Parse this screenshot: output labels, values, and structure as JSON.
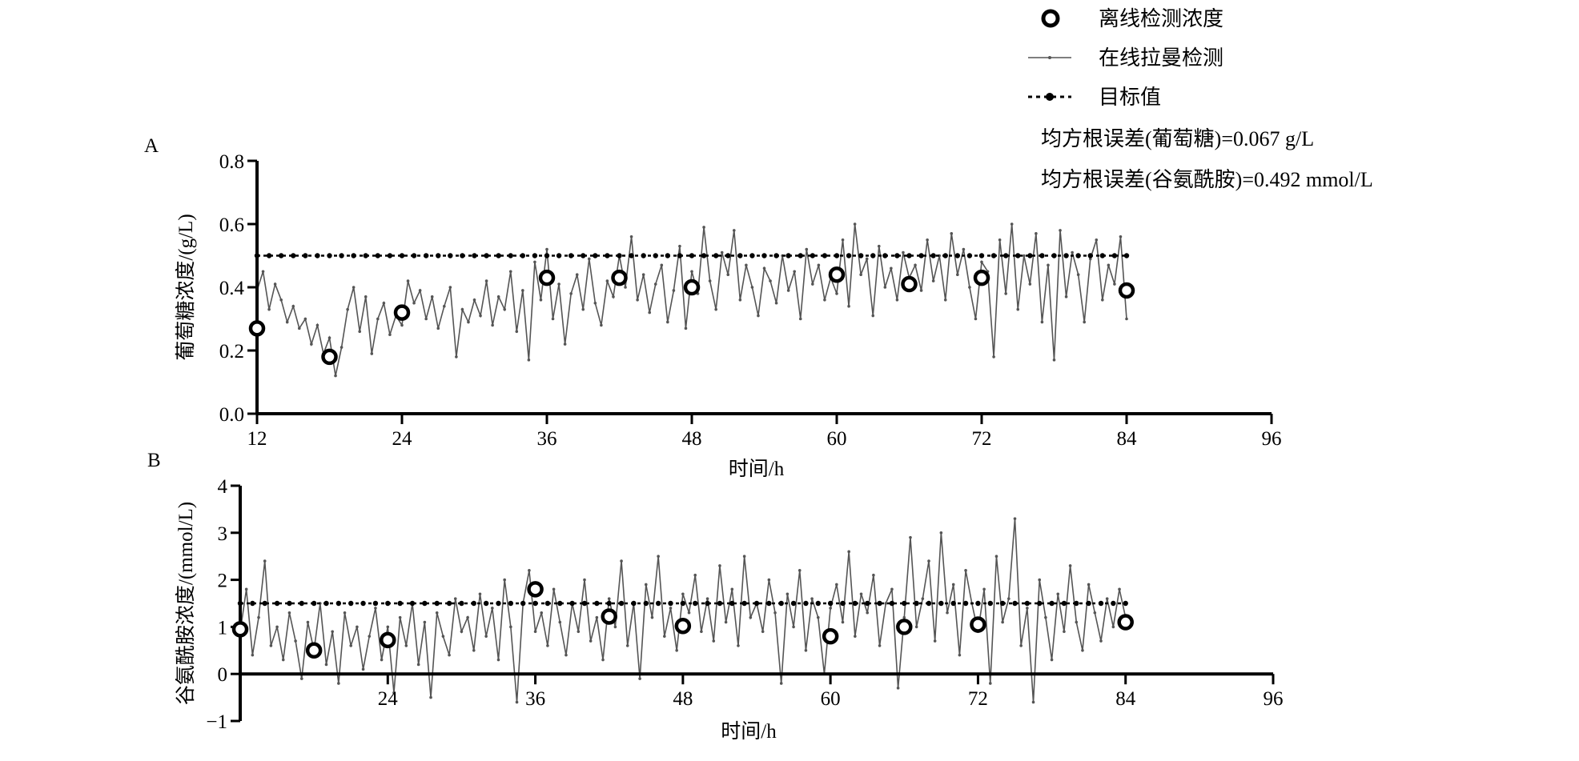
{
  "legend": {
    "offline": "离线检测浓度",
    "online": "在线拉曼检测",
    "target": "目标值"
  },
  "annotations": {
    "rmse_glucose": "均方根误差(葡萄糖)=0.067 g/L",
    "rmse_glutamine": "均方根误差(谷氨酰胺)=0.492 mmol/L"
  },
  "colors": {
    "online": "#555555",
    "offline": "#000000",
    "target": "#000000"
  },
  "chart_data": [
    {
      "panel_label": "A",
      "type": "line",
      "xlabel": "时间/h",
      "ylabel": "葡萄糖浓度/(g/L)",
      "xlim": [
        12,
        96
      ],
      "ylim": [
        0,
        0.8
      ],
      "xticks": [
        12,
        24,
        36,
        48,
        60,
        72,
        84,
        96
      ],
      "xtick_labels": [
        "12",
        "24",
        "36",
        "48",
        "60",
        "72",
        "84",
        "96"
      ],
      "yticks": [
        0,
        0.2,
        0.4,
        0.6,
        0.8
      ],
      "ytick_labels": [
        "0.0",
        "0.2",
        "0.4",
        "0.6",
        "0.8"
      ],
      "target": {
        "value": 0.5,
        "x_range": [
          12,
          84
        ]
      },
      "online": {
        "x_start": 12,
        "x_step": 0.5,
        "values": [
          0.39,
          0.45,
          0.33,
          0.41,
          0.36,
          0.29,
          0.34,
          0.27,
          0.3,
          0.22,
          0.28,
          0.19,
          0.24,
          0.12,
          0.21,
          0.33,
          0.4,
          0.26,
          0.37,
          0.19,
          0.3,
          0.35,
          0.25,
          0.31,
          0.28,
          0.42,
          0.35,
          0.39,
          0.3,
          0.37,
          0.27,
          0.34,
          0.4,
          0.18,
          0.33,
          0.29,
          0.36,
          0.31,
          0.42,
          0.28,
          0.37,
          0.33,
          0.45,
          0.26,
          0.39,
          0.17,
          0.48,
          0.36,
          0.52,
          0.3,
          0.41,
          0.22,
          0.38,
          0.44,
          0.33,
          0.49,
          0.35,
          0.28,
          0.42,
          0.37,
          0.5,
          0.4,
          0.56,
          0.36,
          0.44,
          0.32,
          0.41,
          0.47,
          0.29,
          0.39,
          0.53,
          0.27,
          0.45,
          0.38,
          0.59,
          0.42,
          0.33,
          0.51,
          0.44,
          0.58,
          0.36,
          0.47,
          0.4,
          0.31,
          0.46,
          0.42,
          0.35,
          0.5,
          0.39,
          0.45,
          0.3,
          0.52,
          0.41,
          0.47,
          0.36,
          0.43,
          0.38,
          0.55,
          0.34,
          0.6,
          0.44,
          0.49,
          0.31,
          0.53,
          0.4,
          0.46,
          0.36,
          0.51,
          0.43,
          0.47,
          0.39,
          0.55,
          0.42,
          0.5,
          0.36,
          0.57,
          0.44,
          0.52,
          0.4,
          0.3,
          0.48,
          0.45,
          0.18,
          0.55,
          0.38,
          0.6,
          0.33,
          0.5,
          0.41,
          0.57,
          0.29,
          0.47,
          0.17,
          0.58,
          0.37,
          0.51,
          0.44,
          0.29,
          0.49,
          0.55,
          0.36,
          0.47,
          0.41,
          0.56,
          0.3
        ]
      },
      "offline": [
        {
          "x": 12,
          "y": 0.27
        },
        {
          "x": 18,
          "y": 0.18,
          "err": 0.02
        },
        {
          "x": 24,
          "y": 0.32
        },
        {
          "x": 36,
          "y": 0.43
        },
        {
          "x": 42,
          "y": 0.43,
          "err": 0.02
        },
        {
          "x": 48,
          "y": 0.4
        },
        {
          "x": 60,
          "y": 0.44
        },
        {
          "x": 66,
          "y": 0.41
        },
        {
          "x": 72,
          "y": 0.43
        },
        {
          "x": 84,
          "y": 0.39
        }
      ]
    },
    {
      "panel_label": "B",
      "type": "line",
      "xlabel": "时间/h",
      "ylabel": "谷氨酰胺浓度/(mmol/L)",
      "xlim": [
        12,
        96
      ],
      "ylim": [
        -1,
        4
      ],
      "xticks": [
        12,
        24,
        36,
        48,
        60,
        72,
        84,
        96
      ],
      "xtick_labels": [
        "",
        "24",
        "36",
        "48",
        "60",
        "72",
        "84",
        "96"
      ],
      "yticks": [
        -1,
        0,
        1,
        2,
        3,
        4
      ],
      "ytick_labels": [
        "−1",
        "0",
        "1",
        "2",
        "3",
        "4"
      ],
      "target": {
        "value": 1.5,
        "x_range": [
          12,
          84
        ]
      },
      "online": {
        "x_start": 12,
        "x_step": 0.5,
        "values": [
          0.9,
          1.8,
          0.4,
          1.2,
          2.4,
          0.6,
          1.0,
          0.3,
          1.3,
          0.7,
          -0.1,
          1.1,
          0.5,
          1.5,
          0.2,
          0.9,
          -0.2,
          1.3,
          0.6,
          1.0,
          0.1,
          0.8,
          1.4,
          0.3,
          1.0,
          -0.4,
          1.2,
          0.6,
          1.5,
          0.2,
          1.1,
          -0.5,
          1.3,
          0.8,
          0.4,
          1.6,
          0.9,
          1.2,
          0.5,
          1.7,
          0.8,
          1.4,
          0.3,
          2.0,
          1.0,
          -0.6,
          1.5,
          2.2,
          0.9,
          1.3,
          0.6,
          1.8,
          1.1,
          0.4,
          1.5,
          0.9,
          2.0,
          0.7,
          1.2,
          0.3,
          1.6,
          1.0,
          2.4,
          0.6,
          1.5,
          -0.1,
          1.9,
          1.2,
          2.5,
          0.8,
          1.4,
          0.5,
          1.7,
          1.3,
          2.1,
          0.9,
          1.6,
          0.7,
          2.3,
          1.1,
          1.8,
          0.6,
          2.5,
          1.2,
          1.5,
          0.9,
          2.0,
          1.3,
          -0.2,
          1.7,
          1.0,
          2.2,
          0.5,
          1.6,
          1.2,
          0.0,
          1.4,
          1.9,
          1.1,
          2.6,
          0.8,
          1.7,
          1.3,
          2.1,
          0.6,
          1.5,
          1.8,
          -0.3,
          1.2,
          2.9,
          1.0,
          1.6,
          2.4,
          0.7,
          3.0,
          1.3,
          1.9,
          0.4,
          2.2,
          1.5,
          0.9,
          1.8,
          -0.2,
          2.5,
          1.1,
          1.6,
          3.3,
          0.6,
          1.4,
          -0.6,
          2.0,
          1.2,
          0.3,
          1.7,
          0.9,
          2.3,
          1.1,
          0.5,
          1.9,
          1.3,
          0.7,
          1.6,
          1.0,
          1.8,
          1.2
        ]
      },
      "offline": [
        {
          "x": 12,
          "y": 0.95
        },
        {
          "x": 18,
          "y": 0.5
        },
        {
          "x": 24,
          "y": 0.72
        },
        {
          "x": 36,
          "y": 1.8
        },
        {
          "x": 42,
          "y": 1.22
        },
        {
          "x": 48,
          "y": 1.02
        },
        {
          "x": 60,
          "y": 0.8
        },
        {
          "x": 66,
          "y": 1.0
        },
        {
          "x": 72,
          "y": 1.05
        },
        {
          "x": 84,
          "y": 1.1
        }
      ]
    }
  ]
}
